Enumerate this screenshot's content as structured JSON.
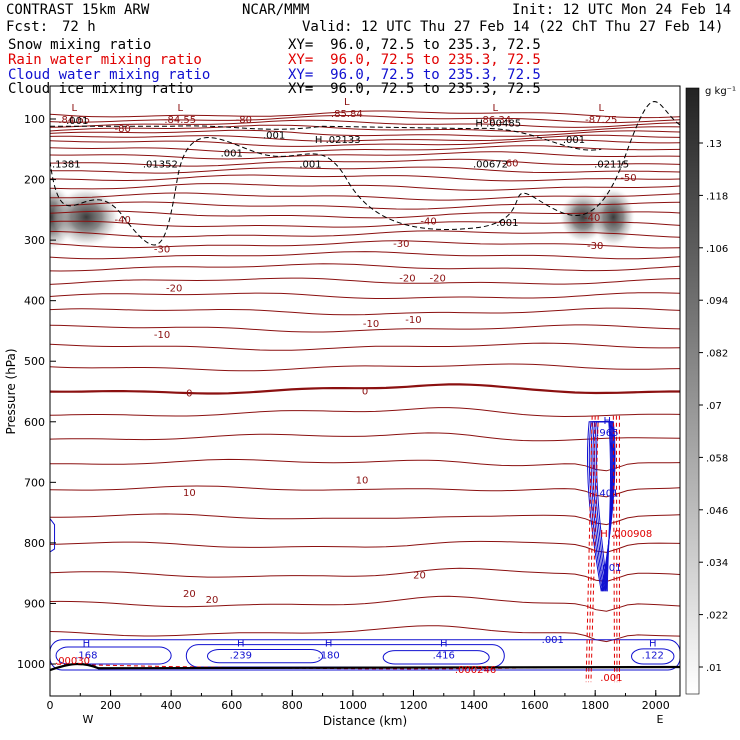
{
  "header": {
    "model": "CONTRAST 15km ARW",
    "org": "NCAR/MMM",
    "init": "Init: 12 UTC Mon 24 Feb 14",
    "fcst_label": "Fcst:",
    "fcst_value": "72 h",
    "valid": "Valid: 12 UTC Thu 27 Feb 14 (22 ChT Thu 27 Feb 14)"
  },
  "legend": [
    {
      "label": "Snow mixing ratio",
      "xy": "XY=  96.0, 72.5 to 235.3, 72.5",
      "color": "#000000"
    },
    {
      "label": "Rain water mixing ratio",
      "xy": "XY=  96.0, 72.5 to 235.3, 72.5",
      "color": "#e00000"
    },
    {
      "label": "Cloud water mixing ratio",
      "xy": "XY=  96.0, 72.5 to 235.3, 72.5",
      "color": "#1010d0"
    },
    {
      "label": "Cloud ice mixing ratio",
      "xy": "XY=  96.0, 72.5 to 235.3, 72.5",
      "color": "#000000"
    }
  ],
  "chart_data": {
    "type": "cross-section",
    "xlabel": "Distance (km)",
    "ylabel": "Pressure (hPa)",
    "xlim": [
      0,
      2080
    ],
    "ylim": [
      1040,
      60
    ],
    "x_ticks": [
      "0",
      "200",
      "400",
      "600",
      "800",
      "1000",
      "1200",
      "1400",
      "1600",
      "1800",
      "2000"
    ],
    "y_ticks": [
      "100",
      "200",
      "300",
      "400",
      "500",
      "600",
      "700",
      "800",
      "900",
      "1000"
    ],
    "left_end_label": "W",
    "right_end_label": "E",
    "colorbar": {
      "unit": "g kg⁻¹",
      "ticks": [
        ".13",
        ".118",
        ".106",
        ".094",
        ".082",
        ".07",
        ".058",
        ".046",
        ".034",
        ".022",
        ".01"
      ]
    },
    "snow_maxima": [
      {
        "label": ".1381",
        "x": 0,
        "p": 180
      },
      {
        "label": ".01352",
        "x": 300,
        "p": 180
      },
      {
        "label": ".00672",
        "x": 1390,
        "p": 180
      },
      {
        "label": ".02115",
        "x": 1790,
        "p": 180
      }
    ],
    "temperature_labels": [
      {
        "label": "-80",
        "x": 240,
        "p": 115
      },
      {
        "label": "-80",
        "x": 640,
        "p": 100
      },
      {
        "label": "-60",
        "x": 1520,
        "p": 172
      },
      {
        "label": "-50",
        "x": 1910,
        "p": 196
      },
      {
        "label": "-40",
        "x": 240,
        "p": 265
      },
      {
        "label": "-40",
        "x": 1250,
        "p": 268
      },
      {
        "label": "-40",
        "x": 1790,
        "p": 262
      },
      {
        "label": "-30",
        "x": 370,
        "p": 314
      },
      {
        "label": "-30",
        "x": 1160,
        "p": 305
      },
      {
        "label": "-30",
        "x": 1800,
        "p": 308
      },
      {
        "label": "-20",
        "x": 410,
        "p": 378
      },
      {
        "label": "-20",
        "x": 1180,
        "p": 362
      },
      {
        "label": "-20",
        "x": 1280,
        "p": 362
      },
      {
        "label": "-10",
        "x": 370,
        "p": 455
      },
      {
        "label": "-10",
        "x": 1060,
        "p": 437
      },
      {
        "label": "-10",
        "x": 1200,
        "p": 430
      },
      {
        "label": "0",
        "x": 460,
        "p": 552
      },
      {
        "label": "0",
        "x": 1040,
        "p": 548
      },
      {
        "label": "10",
        "x": 460,
        "p": 716
      },
      {
        "label": "10",
        "x": 1030,
        "p": 695
      },
      {
        "label": "20",
        "x": 460,
        "p": 883
      },
      {
        "label": "20",
        "x": 535,
        "p": 893
      },
      {
        "label": "20",
        "x": 1220,
        "p": 852
      }
    ],
    "pressure_minima": [
      {
        "marker": "L",
        "label": ".84.65",
        "x": 80,
        "p": 100
      },
      {
        "marker": "L",
        "label": ".84.55",
        "x": 430,
        "p": 100
      },
      {
        "marker": "L",
        "label": ".85.84",
        "x": 980,
        "p": 90
      },
      {
        "marker": "L",
        "label": ".86.34",
        "x": 1470,
        "p": 100
      },
      {
        "marker": "L",
        "label": "-87.25",
        "x": 1820,
        "p": 100
      }
    ],
    "cloud_ice_labels": [
      {
        "label": ".001",
        "x": 90,
        "p": 108
      },
      {
        "label": "H .00485",
        "x": 1480,
        "p": 112
      },
      {
        "label": "H .02133",
        "x": 950,
        "p": 140
      },
      {
        "label": ".001",
        "x": 740,
        "p": 132
      },
      {
        "label": ".001",
        "x": 600,
        "p": 162
      },
      {
        "label": ".001",
        "x": 860,
        "p": 180
      },
      {
        "label": ".001",
        "x": 1510,
        "p": 277
      },
      {
        "label": ".001",
        "x": 1730,
        "p": 140
      }
    ],
    "cloud_water_maxima": [
      {
        "marker": "H",
        "label": ".168",
        "x": 120,
        "p": 988
      },
      {
        "marker": "H",
        "label": ".239",
        "x": 630,
        "p": 988
      },
      {
        "marker": "H",
        "label": ".180",
        "x": 920,
        "p": 988
      },
      {
        "marker": "H",
        "label": ".416",
        "x": 1300,
        "p": 988
      },
      {
        "marker": "H",
        "label": ".122",
        "x": 1990,
        "p": 988
      },
      {
        "marker": "H",
        "label": ".965",
        "x": 1840,
        "p": 620
      },
      {
        "marker": "",
        "label": ".001",
        "x": 1660,
        "p": 962
      },
      {
        "marker": "",
        "label": ".401",
        "x": 1840,
        "p": 720
      },
      {
        "marker": "",
        "label": ".001",
        "x": 1850,
        "p": 843
      }
    ],
    "rain_labels": [
      {
        "label": ".00030",
        "x": 10,
        "p": 1000
      },
      {
        "label": ".000246",
        "x": 1330,
        "p": 1015
      },
      {
        "label": "H .000908",
        "x": 1810,
        "p": 790
      },
      {
        "label": ".001",
        "x": 1810,
        "p": 1028
      }
    ]
  }
}
